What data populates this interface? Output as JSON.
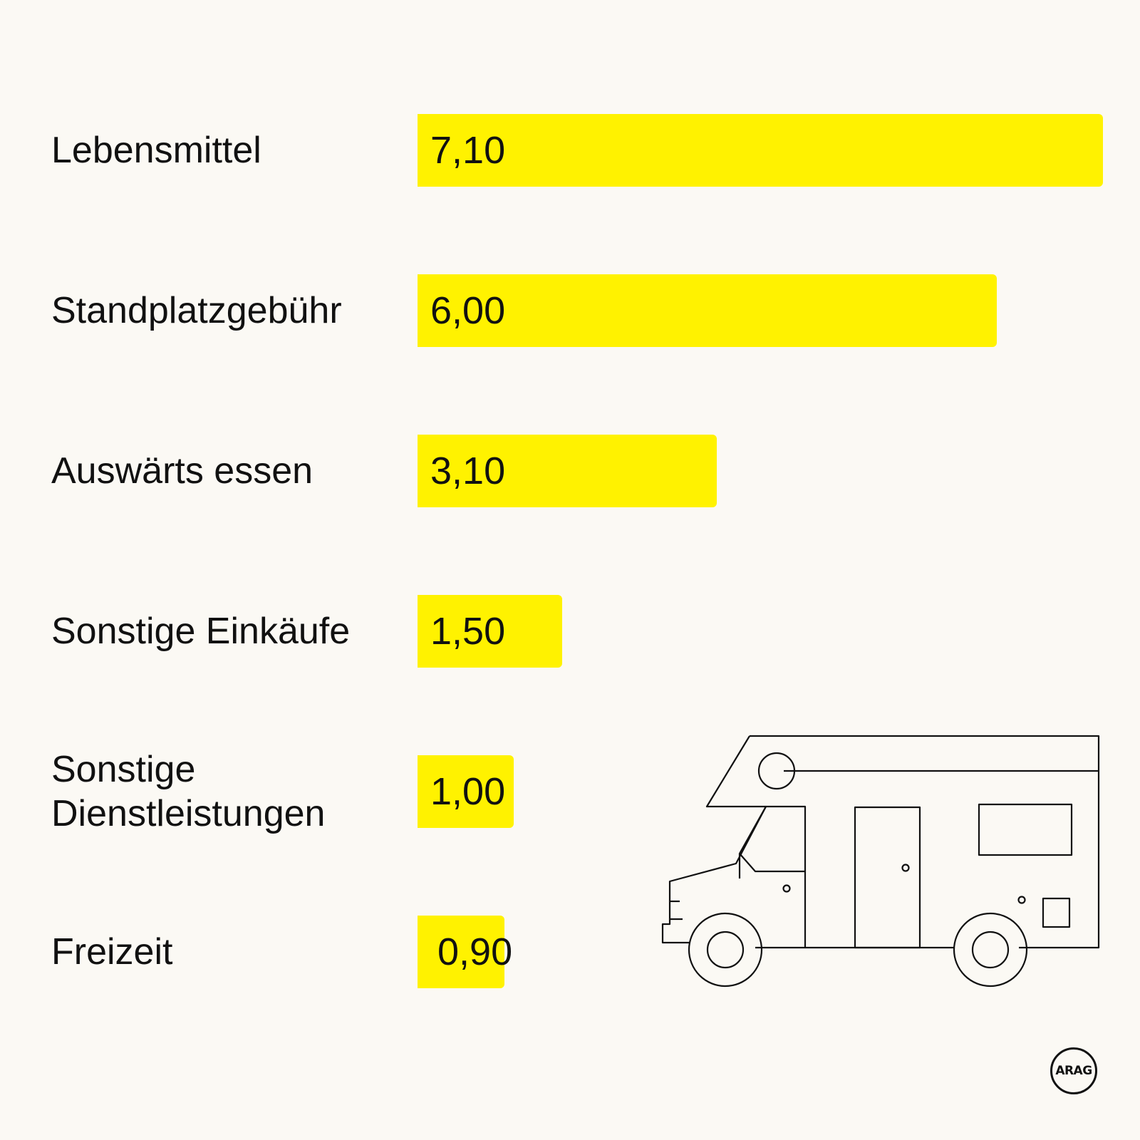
{
  "colors": {
    "background": "#fbf9f4",
    "bar": "#fff200",
    "text": "#111111"
  },
  "chart_data": {
    "type": "bar",
    "orientation": "horizontal",
    "categories": [
      "Lebensmittel",
      "Standplatzgebühr",
      "Auswärts essen",
      "Sonstige Einkäufe",
      "Sonstige\nDienstleistungen",
      "Freizeit"
    ],
    "values": [
      7.1,
      6.0,
      3.1,
      1.5,
      1.0,
      0.9
    ],
    "value_labels": [
      "7,10",
      "6,00",
      "3,10",
      "1,50",
      "1,00",
      "0,90"
    ],
    "xlim": [
      0,
      7.1
    ],
    "grid": false,
    "legend": "none"
  },
  "logo": {
    "text": "ARAG"
  },
  "illustration": {
    "icon": "camper-van-icon"
  }
}
